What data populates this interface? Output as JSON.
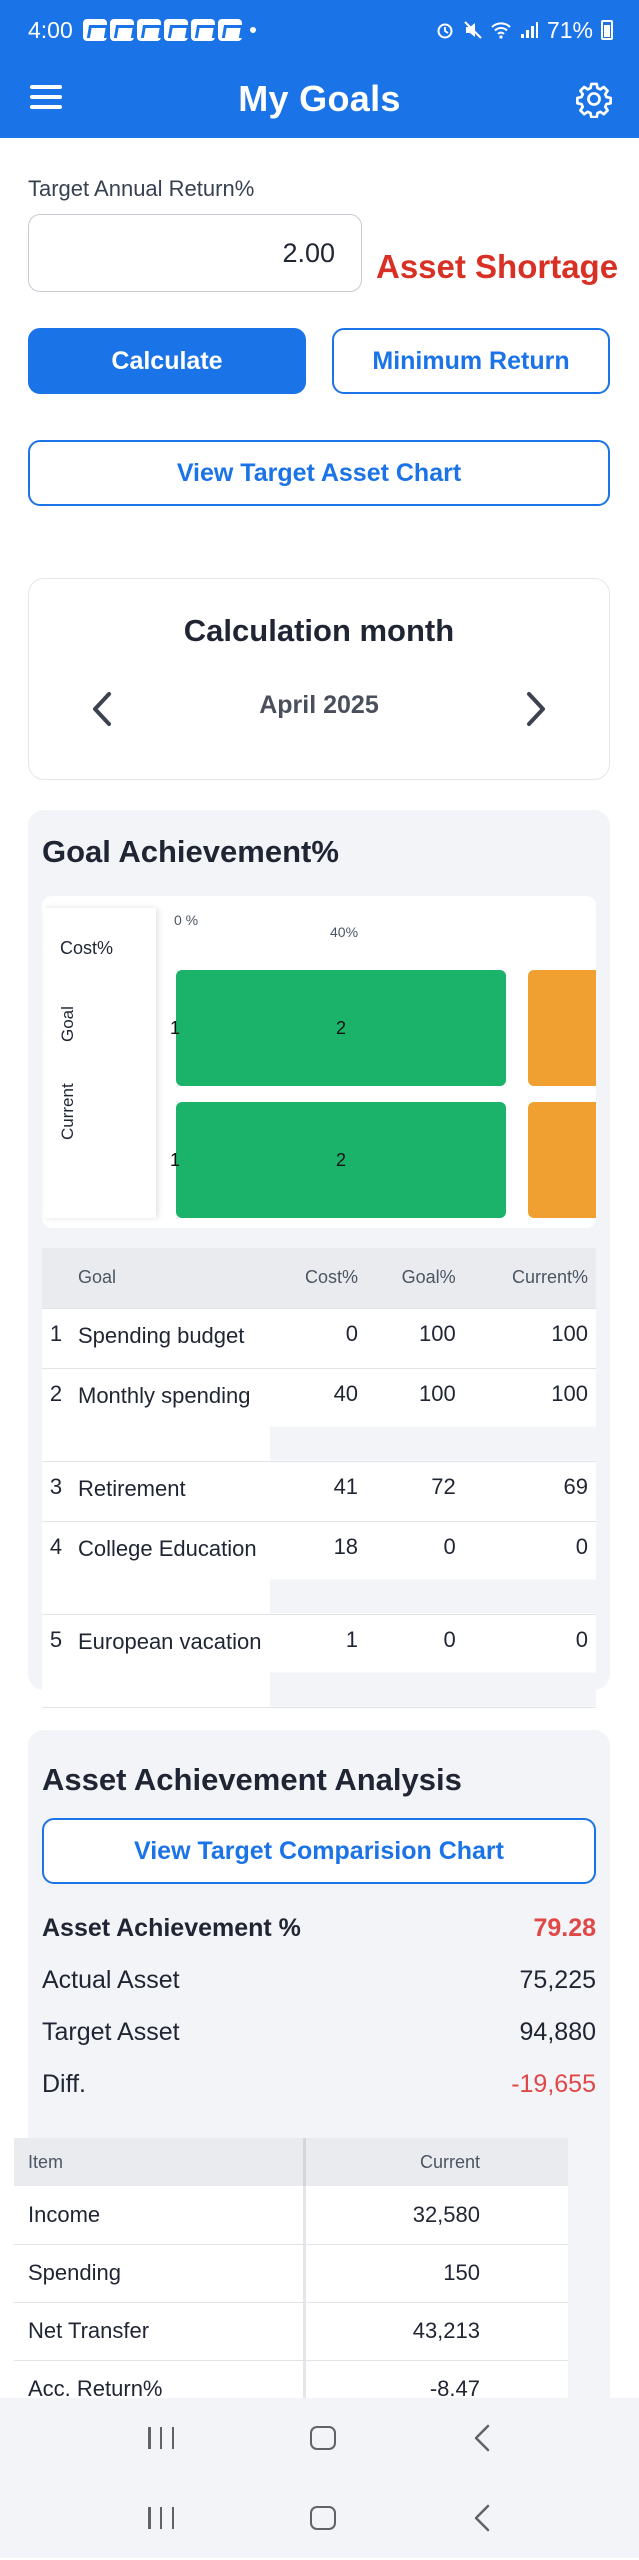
{
  "status_bar": {
    "time": "4:00",
    "battery": "71%",
    "app_icons": [
      "n-icon",
      "n-icon",
      "messenger-icon",
      "e-icon",
      "n-icon",
      "n-icon"
    ]
  },
  "app_bar": {
    "title": "My Goals",
    "menu_icon": "hamburger-menu-icon",
    "settings_icon": "gear-icon"
  },
  "target_return": {
    "label": "Target Annual Return%",
    "value": "2.00",
    "status": "Asset Shortage",
    "status_color": "#d93025"
  },
  "buttons": {
    "calculate": "Calculate",
    "minimum_return": "Minimum Return",
    "view_target_asset_chart": "View Target Asset Chart",
    "view_target_comparison_chart": "View Target Comparision Chart"
  },
  "calc_month": {
    "title": "Calculation month",
    "value": "April 2025"
  },
  "goal_achievement": {
    "title": "Goal Achievement%",
    "chart_data": {
      "type": "bar",
      "orientation": "horizontal-stacked",
      "y_axis_label": "Cost%",
      "categories": [
        "Goal",
        "Current"
      ],
      "tick_labels": [
        "0 %",
        "40%"
      ],
      "segment_labels": [
        "1",
        "2"
      ],
      "series": [
        {
          "values": [
            0,
            0
          ],
          "color": "#1f4e9e"
        },
        {
          "values": [
            40,
            40
          ],
          "color": "#1bb36a"
        },
        {
          "values": [
            41,
            41
          ],
          "color": "#f0a030"
        }
      ]
    },
    "table": {
      "headers": [
        "Goal",
        "Cost%",
        "Goal%",
        "Current%"
      ],
      "rows": [
        {
          "num": "1",
          "name": "Spending budget",
          "cost": "0",
          "goal": "100",
          "current": "100"
        },
        {
          "num": "2",
          "name": "Monthly spending",
          "cost": "40",
          "goal": "100",
          "current": "100"
        },
        {
          "num": "3",
          "name": "Retirement",
          "cost": "41",
          "goal": "72",
          "current": "69"
        },
        {
          "num": "4",
          "name": "College Education",
          "cost": "18",
          "goal": "0",
          "current": "0"
        },
        {
          "num": "5",
          "name": "European vacation",
          "cost": "1",
          "goal": "0",
          "current": "0"
        }
      ]
    }
  },
  "asset_analysis": {
    "title": "Asset Achievement Analysis",
    "achievement_label": "Asset Achievement %",
    "achievement_value": "79.28",
    "actual_label": "Actual Asset",
    "actual_value": "75,225",
    "target_label": "Target Asset",
    "target_value": "94,880",
    "diff_label": "Diff.",
    "diff_value": "-19,655",
    "negative_color": "#e04848",
    "table": {
      "headers": [
        "Item",
        "Current"
      ],
      "rows": [
        {
          "item": "Income",
          "current": "32,580"
        },
        {
          "item": "Spending",
          "current": "150"
        },
        {
          "item": "Net Transfer",
          "current": "43,213"
        },
        {
          "item": "Acc. Return%",
          "current": "-8.47"
        }
      ]
    }
  },
  "navigation": {
    "recent_icon": "recent-apps-icon",
    "home_icon": "home-icon",
    "back_icon": "back-icon"
  }
}
